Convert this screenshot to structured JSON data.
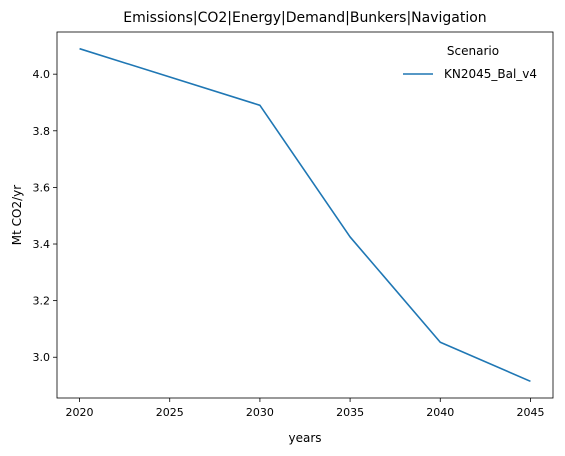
{
  "chart_data": {
    "type": "line",
    "title": "Emissions|CO2|Energy|Demand|Bunkers|Navigation",
    "xlabel": "years",
    "ylabel": "Mt CO2/yr",
    "x": [
      2020,
      2030,
      2035,
      2040,
      2045
    ],
    "series": [
      {
        "name": "KN2045_Bal_v4",
        "color": "#1f77b4",
        "values": [
          4.09,
          3.89,
          3.425,
          3.053,
          2.915
        ]
      }
    ],
    "xticks": [
      2020,
      2025,
      2030,
      2035,
      2040,
      2045
    ],
    "yticks": [
      3.0,
      3.2,
      3.4,
      3.6,
      3.8,
      4.0
    ],
    "ytick_labels": [
      "3.0",
      "3.2",
      "3.4",
      "3.6",
      "3.8",
      "4.0"
    ],
    "xlim": [
      2018.75,
      2046.25
    ],
    "ylim": [
      2.856,
      4.149
    ],
    "grid": false,
    "legend": {
      "title": "Scenario",
      "placement": "top-right",
      "frame": false
    }
  }
}
